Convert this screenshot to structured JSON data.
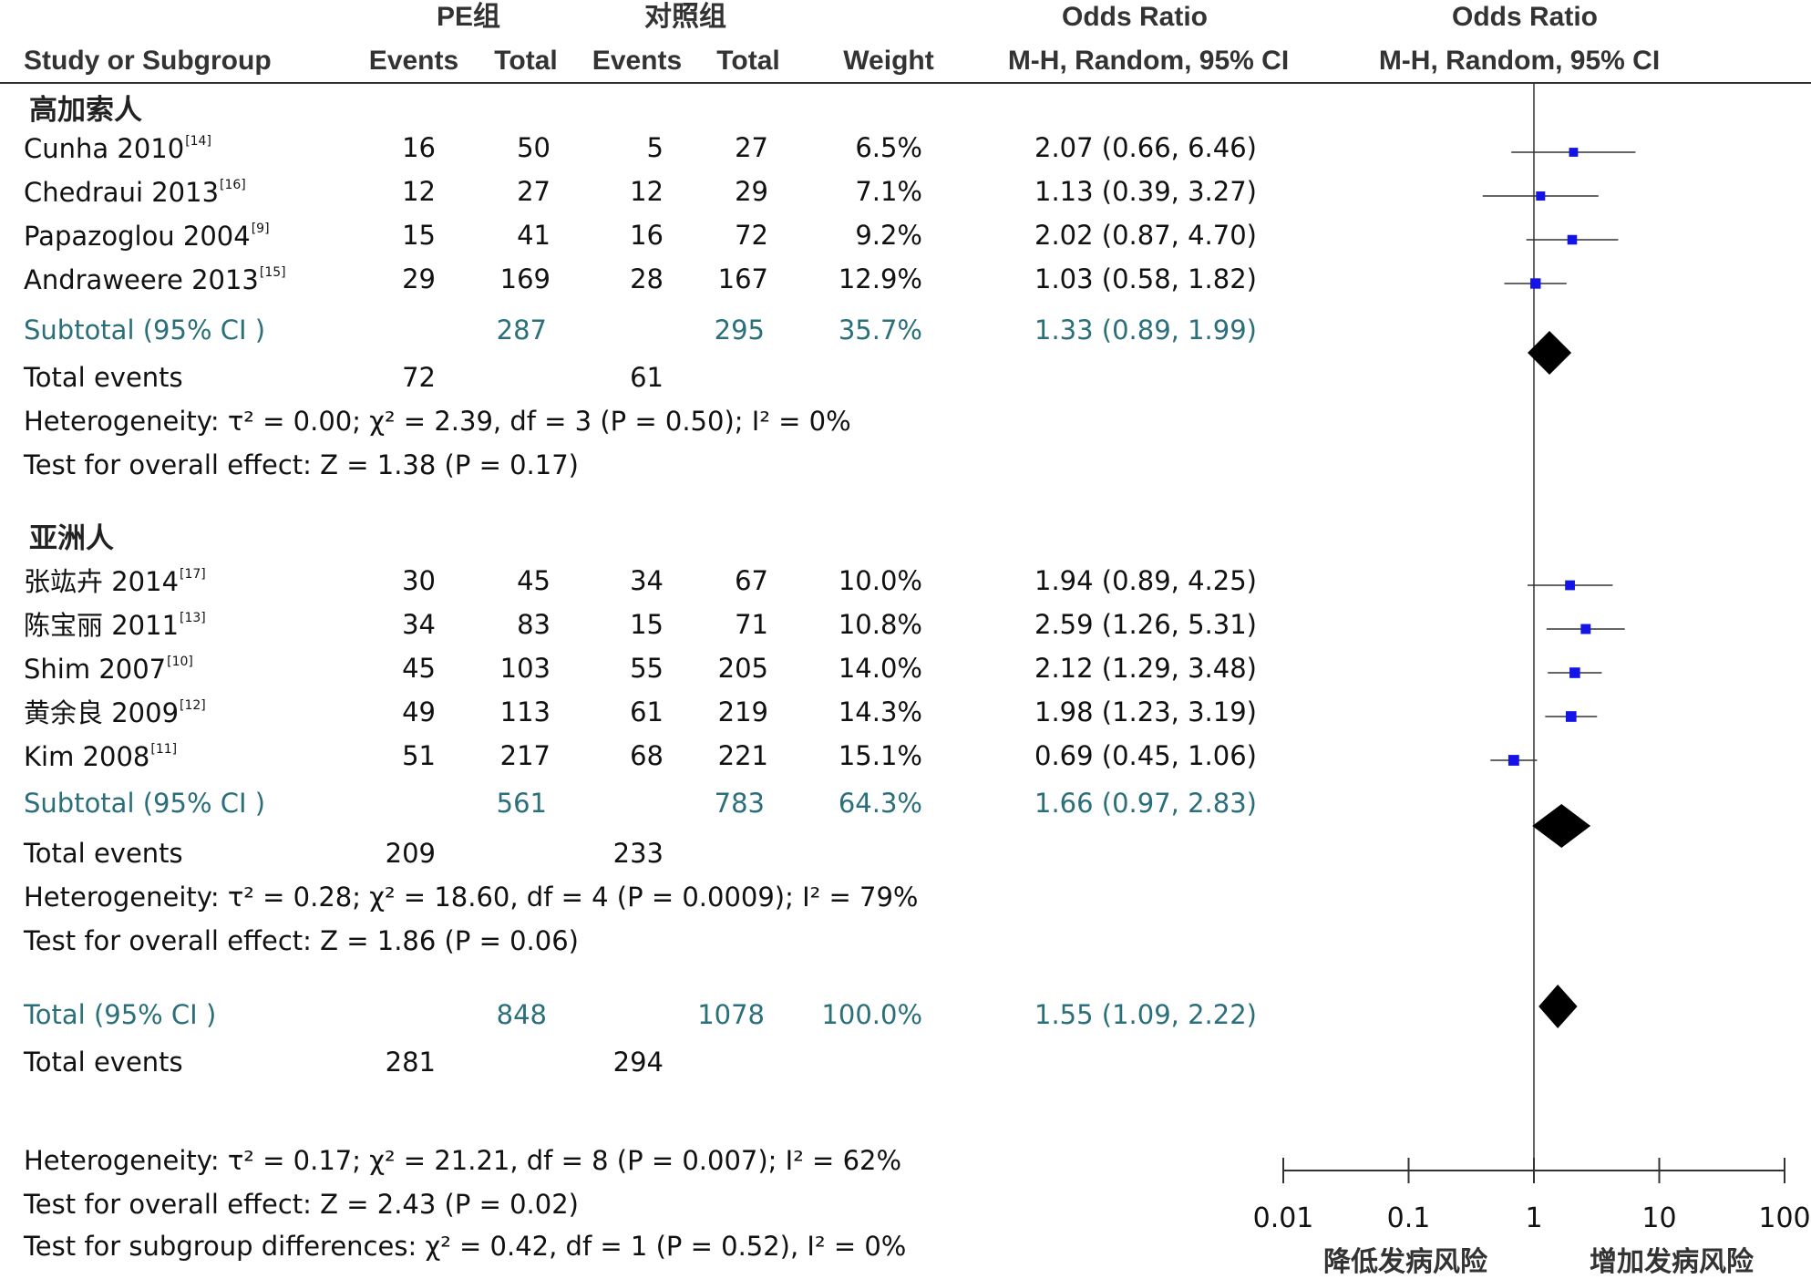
{
  "chart_data": {
    "type": "forest",
    "headers": {
      "group1": "PE组",
      "group2": "对照组",
      "or_left": "Odds Ratio",
      "or_right": "Odds Ratio",
      "study": "Study or Subgroup",
      "events1": "Events",
      "total1": "Total",
      "events2": "Events",
      "total2": "Total",
      "weight": "Weight",
      "method_left": "M-H, Random, 95% CI",
      "method_right": "M-H, Random, 95% CI"
    },
    "subgroups": [
      {
        "name": "高加索人",
        "studies": [
          {
            "name": "Cunha 2010",
            "ref": "[14]",
            "e1": "16",
            "t1": "50",
            "e2": "5",
            "t2": "27",
            "weight": "6.5%",
            "ci": "2.07 (0.66, 6.46)",
            "or": 2.07,
            "lo": 0.66,
            "hi": 6.46
          },
          {
            "name": "Chedraui 2013",
            "ref": "[16]",
            "e1": "12",
            "t1": "27",
            "e2": "12",
            "t2": "29",
            "weight": "7.1%",
            "ci": "1.13 (0.39, 3.27)",
            "or": 1.13,
            "lo": 0.39,
            "hi": 3.27
          },
          {
            "name": "Papazoglou 2004",
            "ref": "[9]",
            "e1": "15",
            "t1": "41",
            "e2": "16",
            "t2": "72",
            "weight": "9.2%",
            "ci": "2.02 (0.87, 4.70)",
            "or": 2.02,
            "lo": 0.87,
            "hi": 4.7
          },
          {
            "name": "Andraweere 2013",
            "ref": "[15]",
            "e1": "29",
            "t1": "169",
            "e2": "28",
            "t2": "167",
            "weight": "12.9%",
            "ci": "1.03 (0.58, 1.82)",
            "or": 1.03,
            "lo": 0.58,
            "hi": 1.82
          }
        ],
        "subtotal": {
          "label": "Subtotal (95% CI )",
          "t1": "287",
          "t2": "295",
          "weight": "35.7%",
          "ci": "1.33 (0.89, 1.99)",
          "or": 1.33,
          "lo": 0.89,
          "hi": 1.99
        },
        "total_events": {
          "label": "Total events",
          "e1": "72",
          "e2": "61"
        },
        "heterogeneity": "Heterogeneity: τ² = 0.00; χ² = 2.39, df = 3 (P = 0.50); I² = 0%",
        "overall": "Test for overall effect: Z = 1.38 (P = 0.17)"
      },
      {
        "name": "亚洲人",
        "studies": [
          {
            "name": "张竑卉 2014",
            "ref": "[17]",
            "e1": "30",
            "t1": "45",
            "e2": "34",
            "t2": "67",
            "weight": "10.0%",
            "ci": "1.94 (0.89, 4.25)",
            "or": 1.94,
            "lo": 0.89,
            "hi": 4.25
          },
          {
            "name": "陈宝丽 2011",
            "ref": "[13]",
            "e1": "34",
            "t1": "83",
            "e2": "15",
            "t2": "71",
            "weight": "10.8%",
            "ci": "2.59 (1.26, 5.31)",
            "or": 2.59,
            "lo": 1.26,
            "hi": 5.31
          },
          {
            "name": "Shim 2007",
            "ref": "[10]",
            "e1": "45",
            "t1": "103",
            "e2": "55",
            "t2": "205",
            "weight": "14.0%",
            "ci": "2.12 (1.29, 3.48)",
            "or": 2.12,
            "lo": 1.29,
            "hi": 3.48
          },
          {
            "name": "黄余良 2009",
            "ref": "[12]",
            "e1": "49",
            "t1": "113",
            "e2": "61",
            "t2": "219",
            "weight": "14.3%",
            "ci": "1.98 (1.23, 3.19)",
            "or": 1.98,
            "lo": 1.23,
            "hi": 3.19
          },
          {
            "name": "Kim 2008",
            "ref": "[11]",
            "e1": "51",
            "t1": "217",
            "e2": "68",
            "t2": "221",
            "weight": "15.1%",
            "ci": "0.69 (0.45, 1.06)",
            "or": 0.69,
            "lo": 0.45,
            "hi": 1.06
          }
        ],
        "subtotal": {
          "label": "Subtotal (95% CI )",
          "t1": "561",
          "t2": "783",
          "weight": "64.3%",
          "ci": "1.66 (0.97, 2.83)",
          "or": 1.66,
          "lo": 0.97,
          "hi": 2.83
        },
        "total_events": {
          "label": "Total events",
          "e1": "209",
          "e2": "233"
        },
        "heterogeneity": "Heterogeneity: τ² = 0.28; χ² = 18.60, df = 4 (P = 0.0009); I² = 79%",
        "overall": "Test for overall effect: Z = 1.86 (P = 0.06)"
      }
    ],
    "total": {
      "label": "Total (95% CI )",
      "t1": "848",
      "t2": "1078",
      "weight": "100.0%",
      "ci": "1.55 (1.09, 2.22)",
      "or": 1.55,
      "lo": 1.09,
      "hi": 2.22
    },
    "total_events": {
      "label": "Total events",
      "e1": "281",
      "e2": "294"
    },
    "footer": {
      "heterogeneity": "Heterogeneity: τ² = 0.17; χ² = 21.21, df = 8 (P = 0.007); I² = 62%",
      "overall": "Test for overall effect: Z = 2.43 (P = 0.02)",
      "subgroup_diff": "Test for subgroup differences: χ² = 0.42, df = 1 (P = 0.52), I² = 0%"
    },
    "x_axis": {
      "scale": "log",
      "ticks": [
        0.01,
        0.1,
        1,
        10,
        100
      ],
      "tick_labels": [
        "0.01",
        "0.1",
        "1",
        "10",
        "100"
      ],
      "favours_left": "降低发病风险",
      "favours_right": "增加发病风险"
    },
    "colors": {
      "study_marker": "#1414e6",
      "summary_diamond": "#000000",
      "subtotal_text": "#2a6f7a"
    }
  }
}
